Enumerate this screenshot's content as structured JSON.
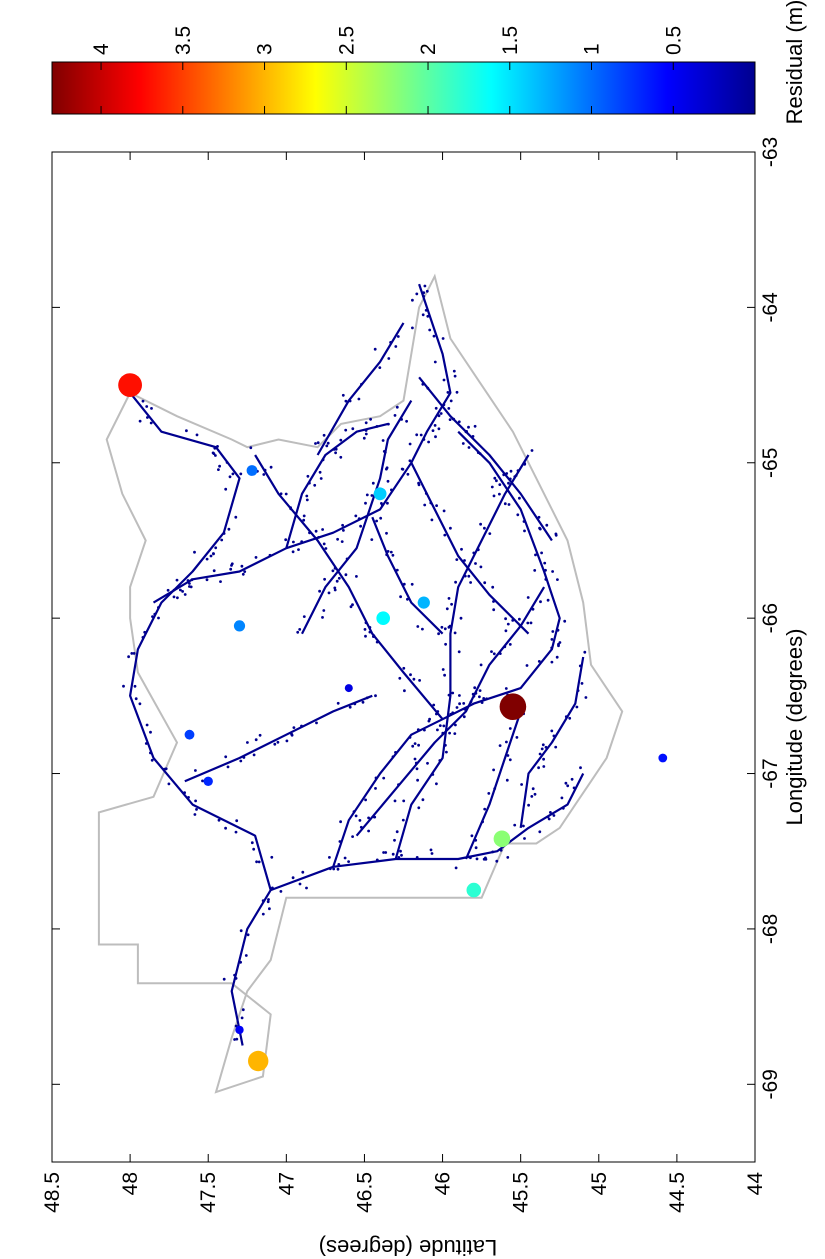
{
  "chart_data": {
    "type": "scatter",
    "title": "",
    "xlabel": "Longitude (degrees)",
    "ylabel": "Latitude (degrees)",
    "xlim": [
      -69.5,
      -63
    ],
    "ylim": [
      44,
      48.5
    ],
    "x_ticks": [
      "-69",
      "-68",
      "-67",
      "-66",
      "-65",
      "-64",
      "-63"
    ],
    "y_ticks": [
      "48.5",
      "48",
      "47.5",
      "47",
      "46.5",
      "46",
      "45.5",
      "45",
      "44.5",
      "44"
    ],
    "grid": false,
    "colorbar": {
      "label": "Residual (m)",
      "range": [
        0,
        4.3
      ],
      "ticks": [
        "0.5",
        "1",
        "1.5",
        "2",
        "2.5",
        "3",
        "3.5",
        "4"
      ],
      "colormap": "jet"
    },
    "outline_color": "#bdbdbd",
    "series": [
      {
        "values": [
          {
            "x": -68.85,
            "y": 47.18,
            "residual": 3.0
          },
          {
            "x": -64.5,
            "y": 48.0,
            "residual": 3.7
          },
          {
            "x": -66.57,
            "y": 45.55,
            "residual": 4.3
          },
          {
            "x": -67.42,
            "y": 45.62,
            "residual": 2.2
          },
          {
            "x": -67.75,
            "y": 45.8,
            "residual": 1.8
          },
          {
            "x": -66.0,
            "y": 46.38,
            "residual": 1.6
          },
          {
            "x": -65.2,
            "y": 46.4,
            "residual": 1.4
          },
          {
            "x": -65.9,
            "y": 46.12,
            "residual": 1.3
          },
          {
            "x": -66.05,
            "y": 47.3,
            "residual": 1.1
          },
          {
            "x": -65.05,
            "y": 47.22,
            "residual": 1.0
          },
          {
            "x": -66.75,
            "y": 47.62,
            "residual": 0.8
          },
          {
            "x": -67.05,
            "y": 47.5,
            "residual": 0.7
          },
          {
            "x": -66.9,
            "y": 44.59,
            "residual": 0.6
          },
          {
            "x": -68.65,
            "y": 47.3,
            "residual": 0.5
          },
          {
            "x": -66.45,
            "y": 46.6,
            "residual": 0.4
          }
        ]
      }
    ]
  }
}
